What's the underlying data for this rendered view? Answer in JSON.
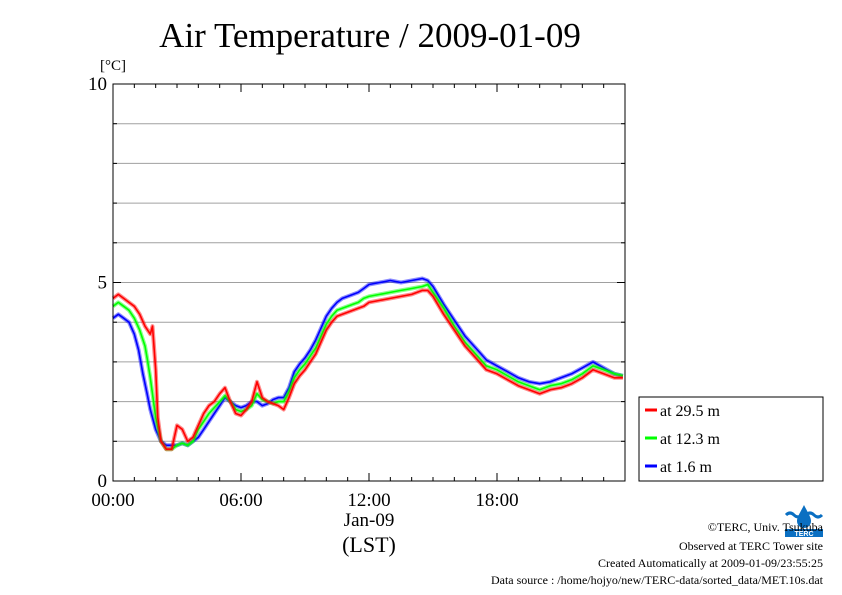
{
  "chart_data": {
    "type": "line",
    "title": "Air Temperature / 2009-01-09",
    "ylabel": "[°C]",
    "ylim": [
      0,
      10
    ],
    "y_ticks": [
      0,
      5,
      10
    ],
    "xlim": [
      0,
      24
    ],
    "x_ticks": [
      0,
      6,
      12,
      18
    ],
    "x_tick_labels": [
      "00:00",
      "06:00",
      "12:00",
      "18:00"
    ],
    "x_date_label": "Jan-09",
    "x_zone_label": "(LST)",
    "grid": true,
    "legend_position": "right",
    "series": [
      {
        "name": "at 29.5 m",
        "color": "#ff0000",
        "x": [
          0,
          0.25,
          0.5,
          0.75,
          1.0,
          1.25,
          1.5,
          1.75,
          1.85,
          2.0,
          2.1,
          2.25,
          2.5,
          2.75,
          3.0,
          3.25,
          3.5,
          3.75,
          4.0,
          4.25,
          4.5,
          4.75,
          5.0,
          5.25,
          5.5,
          5.75,
          6.0,
          6.25,
          6.5,
          6.75,
          7.0,
          7.25,
          7.5,
          7.75,
          8.0,
          8.25,
          8.5,
          8.75,
          9.0,
          9.25,
          9.5,
          9.75,
          10.0,
          10.25,
          10.5,
          10.75,
          11.0,
          11.25,
          11.5,
          11.75,
          12.0,
          12.5,
          13.0,
          13.5,
          14.0,
          14.5,
          14.75,
          15.0,
          15.5,
          16.0,
          16.5,
          17.0,
          17.5,
          18.0,
          18.5,
          19.0,
          19.5,
          20.0,
          20.5,
          21.0,
          21.5,
          22.0,
          22.5,
          23.0,
          23.5,
          23.9
        ],
        "values": [
          4.6,
          4.7,
          4.6,
          4.5,
          4.4,
          4.2,
          3.9,
          3.7,
          3.9,
          2.8,
          1.6,
          1.0,
          0.8,
          0.8,
          1.4,
          1.3,
          1.0,
          1.1,
          1.4,
          1.7,
          1.9,
          2.0,
          2.2,
          2.35,
          2.0,
          1.7,
          1.65,
          1.8,
          2.0,
          2.5,
          2.1,
          2.0,
          1.95,
          1.9,
          1.8,
          2.1,
          2.45,
          2.65,
          2.8,
          3.0,
          3.2,
          3.5,
          3.8,
          4.0,
          4.15,
          4.2,
          4.25,
          4.3,
          4.35,
          4.4,
          4.5,
          4.55,
          4.6,
          4.65,
          4.7,
          4.8,
          4.8,
          4.65,
          4.2,
          3.8,
          3.4,
          3.1,
          2.8,
          2.7,
          2.55,
          2.4,
          2.3,
          2.2,
          2.3,
          2.35,
          2.45,
          2.6,
          2.8,
          2.7,
          2.6,
          2.6
        ]
      },
      {
        "name": "at 12.3 m",
        "color": "#00ff00",
        "x": [
          0,
          0.25,
          0.5,
          0.75,
          1.0,
          1.25,
          1.5,
          1.6,
          1.75,
          2.0,
          2.25,
          2.5,
          2.75,
          3.0,
          3.25,
          3.5,
          3.75,
          4.0,
          4.25,
          4.5,
          4.75,
          5.0,
          5.25,
          5.5,
          5.75,
          6.0,
          6.25,
          6.5,
          6.75,
          7.0,
          7.25,
          7.5,
          7.75,
          8.0,
          8.25,
          8.5,
          8.75,
          9.0,
          9.25,
          9.5,
          9.75,
          10.0,
          10.25,
          10.5,
          10.75,
          11.0,
          11.25,
          11.5,
          11.75,
          12.0,
          12.5,
          13.0,
          13.5,
          14.0,
          14.5,
          14.75,
          15.0,
          15.5,
          16.0,
          16.5,
          17.0,
          17.5,
          18.0,
          18.5,
          19.0,
          19.5,
          20.0,
          20.5,
          21.0,
          21.5,
          22.0,
          22.5,
          23.0,
          23.5,
          23.9
        ],
        "values": [
          4.4,
          4.5,
          4.4,
          4.3,
          4.1,
          3.8,
          3.4,
          3.1,
          2.6,
          1.6,
          1.0,
          0.8,
          0.8,
          0.9,
          0.95,
          0.9,
          1.0,
          1.3,
          1.5,
          1.7,
          1.85,
          2.0,
          2.15,
          2.0,
          1.8,
          1.75,
          1.8,
          1.9,
          2.2,
          2.05,
          2.0,
          1.95,
          2.0,
          2.0,
          2.25,
          2.6,
          2.8,
          2.95,
          3.15,
          3.35,
          3.65,
          3.95,
          4.15,
          4.3,
          4.35,
          4.4,
          4.45,
          4.5,
          4.6,
          4.65,
          4.7,
          4.75,
          4.8,
          4.85,
          4.9,
          4.95,
          4.75,
          4.35,
          3.9,
          3.5,
          3.2,
          2.9,
          2.8,
          2.65,
          2.5,
          2.4,
          2.3,
          2.4,
          2.45,
          2.55,
          2.7,
          2.9,
          2.8,
          2.7,
          2.65
        ]
      },
      {
        "name": "at 1.6 m",
        "color": "#0000ff",
        "x": [
          0,
          0.25,
          0.5,
          0.75,
          1.0,
          1.2,
          1.4,
          1.6,
          1.75,
          2.0,
          2.25,
          2.5,
          2.75,
          3.0,
          3.25,
          3.5,
          3.75,
          4.0,
          4.25,
          4.5,
          4.75,
          5.0,
          5.25,
          5.5,
          5.75,
          6.0,
          6.25,
          6.5,
          6.75,
          7.0,
          7.25,
          7.5,
          7.75,
          8.0,
          8.25,
          8.5,
          8.75,
          9.0,
          9.25,
          9.5,
          9.75,
          10.0,
          10.25,
          10.5,
          10.75,
          11.0,
          11.25,
          11.5,
          11.75,
          12.0,
          12.5,
          13.0,
          13.5,
          14.0,
          14.5,
          14.75,
          15.0,
          15.5,
          16.0,
          16.5,
          17.0,
          17.5,
          18.0,
          18.5,
          19.0,
          19.5,
          20.0,
          20.5,
          21.0,
          21.5,
          22.0,
          22.5,
          23.0,
          23.5,
          23.9
        ],
        "values": [
          4.1,
          4.2,
          4.1,
          4.0,
          3.7,
          3.3,
          2.7,
          2.2,
          1.8,
          1.3,
          1.0,
          0.9,
          0.9,
          0.9,
          0.95,
          0.9,
          1.0,
          1.1,
          1.3,
          1.5,
          1.7,
          1.9,
          2.1,
          2.0,
          1.9,
          1.85,
          1.9,
          2.0,
          2.0,
          1.9,
          1.95,
          2.05,
          2.1,
          2.1,
          2.35,
          2.75,
          2.95,
          3.1,
          3.3,
          3.55,
          3.85,
          4.15,
          4.35,
          4.5,
          4.6,
          4.65,
          4.7,
          4.75,
          4.85,
          4.95,
          5.0,
          5.05,
          5.0,
          5.05,
          5.1,
          5.05,
          4.9,
          4.45,
          4.05,
          3.65,
          3.35,
          3.05,
          2.9,
          2.75,
          2.6,
          2.5,
          2.45,
          2.5,
          2.6,
          2.7,
          2.85,
          3.0,
          2.85,
          2.7,
          2.65
        ]
      }
    ]
  },
  "footer": {
    "line1": "©TERC, Univ. Tsukuba",
    "line2": "Observed at TERC Tower site",
    "line3": "Created Automatically at 2009-01-09/23:55:25",
    "line4": "Data source : /home/hojyo/new/TERC-data/sorted_data/MET.10s.dat",
    "logo_text": "TERC"
  }
}
